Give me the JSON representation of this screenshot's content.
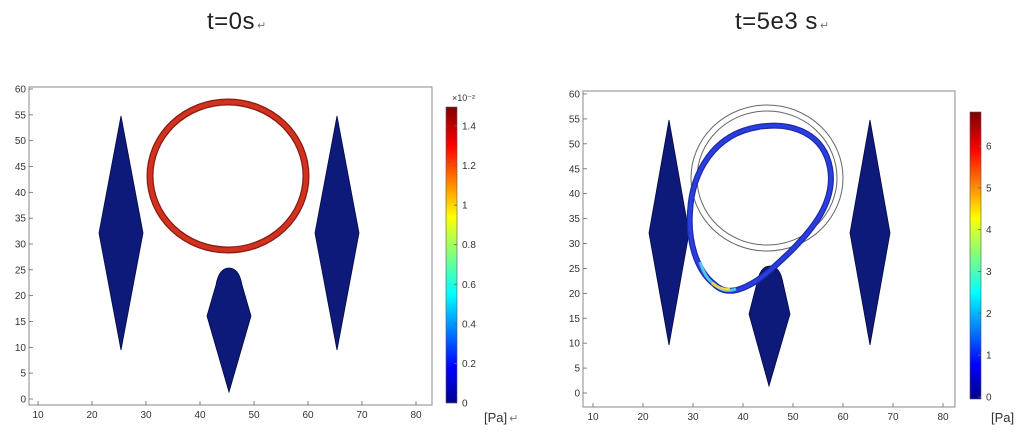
{
  "panels": [
    {
      "title": "t=0s",
      "title_mark": "↵",
      "x_ticks": [
        "10",
        "20",
        "30",
        "40",
        "50",
        "60",
        "70",
        "80"
      ],
      "y_ticks": [
        "0",
        "5",
        "10",
        "15",
        "20",
        "25",
        "30",
        "35",
        "40",
        "45",
        "50",
        "55",
        "60"
      ],
      "colorbar_ticks": [
        "0",
        "0.2",
        "0.4",
        "0.6",
        "0.8",
        "1",
        "1.2",
        "1.4"
      ],
      "colorbar_exponent": "×10⁻²",
      "unit_label": "[Pa]",
      "unit_mark": "↵"
    },
    {
      "title": "t=5e3 s",
      "title_mark": "↵",
      "x_ticks": [
        "10",
        "20",
        "30",
        "40",
        "50",
        "60",
        "70",
        "80"
      ],
      "y_ticks": [
        "0",
        "5",
        "10",
        "15",
        "20",
        "25",
        "30",
        "35",
        "40",
        "45",
        "50",
        "55",
        "60"
      ],
      "colorbar_ticks": [
        "0",
        "1",
        "2",
        "3",
        "4",
        "5",
        "6"
      ],
      "unit_label": "[Pa]"
    }
  ],
  "colors": {
    "obstacle": "#0d1a7a",
    "ring_t0": "#c2281c",
    "membrane_t5e3": "#1a2fd0",
    "membrane_hot": "#e6d64a",
    "axis": "#555555"
  }
}
